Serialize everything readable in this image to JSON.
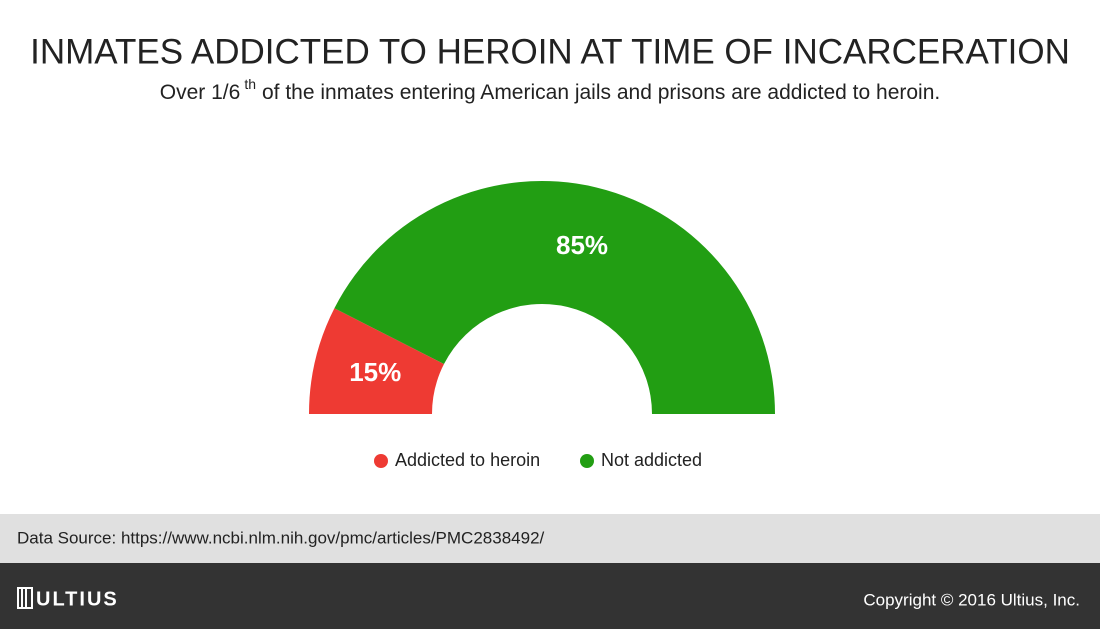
{
  "chart_data": {
    "type": "half-donut",
    "title": "INMATES ADDICTED TO HEROIN AT TIME OF INCARCERATION",
    "subtitle": {
      "before": "Over 1/6",
      "superscript": "th",
      "after": "of the inmates entering American jails and prisons are addicted to heroin."
    },
    "categories": [
      "Addicted to heroin",
      "Not addicted"
    ],
    "values": [
      15,
      85
    ],
    "value_labels": [
      "15%",
      "85%"
    ],
    "colors": [
      "#ee3a33",
      "#229e13"
    ],
    "legend": "bottom"
  },
  "footer": {
    "source": "Data Source: https://www.ncbi.nlm.nih.gov/pmc/articles/PMC2838492/",
    "logo": "ULTIUS",
    "copyright": "Copyright © 2016 Ultius, Inc."
  }
}
